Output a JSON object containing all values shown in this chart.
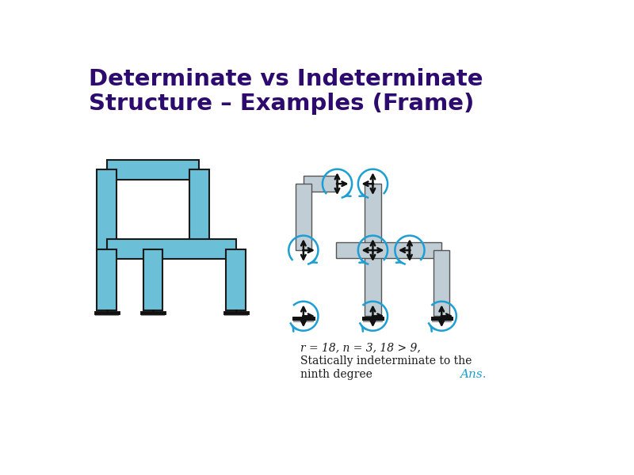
{
  "title_line1": "Determinate vs Indeterminate",
  "title_line2": "Structure – Examples (Frame)",
  "title_color": "#2d0a6e",
  "title_fontsize": 21,
  "background_color": "#ffffff",
  "frame_fill_color": "#6bbfd6",
  "frame_edge_color": "#1a1a1a",
  "frame_lw": 1.5,
  "fbd_fill_color": "#c0cdd4",
  "fbd_edge_color": "#555555",
  "fbd_lw": 1.0,
  "arrow_black": "#111111",
  "arrow_blue": "#1e9fd4",
  "text1": "r = 18, n = 3, 18 > 9,",
  "text2": "Statically indeterminate to the",
  "text3": "ninth degree",
  "text4": "Ans.",
  "text_fontsize": 10,
  "ans_color": "#1e9fd4",
  "ans_fontsize": 11
}
